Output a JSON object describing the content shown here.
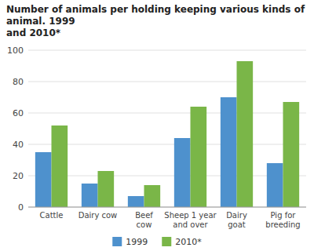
{
  "chart_data": {
    "type": "bar",
    "title": "Number of animals per holding keeping various kinds of animal. 1999\nand 2010*",
    "categories": [
      "Cattle",
      "Dairy cow",
      "Beef\ncow",
      "Sheep 1 year\nand over",
      "Dairy\ngoat",
      "Pig for\nbreeding"
    ],
    "series": [
      {
        "name": "1999",
        "color": "#4e91cd",
        "values": [
          35,
          15,
          7,
          44,
          70,
          28
        ]
      },
      {
        "name": "2010*",
        "color": "#7ab648",
        "values": [
          52,
          23,
          14,
          64,
          93,
          67
        ]
      }
    ],
    "ylim": [
      0,
      100
    ],
    "yticks": [
      0,
      20,
      40,
      60,
      80,
      100
    ],
    "grid": true,
    "legend": "bottom"
  }
}
